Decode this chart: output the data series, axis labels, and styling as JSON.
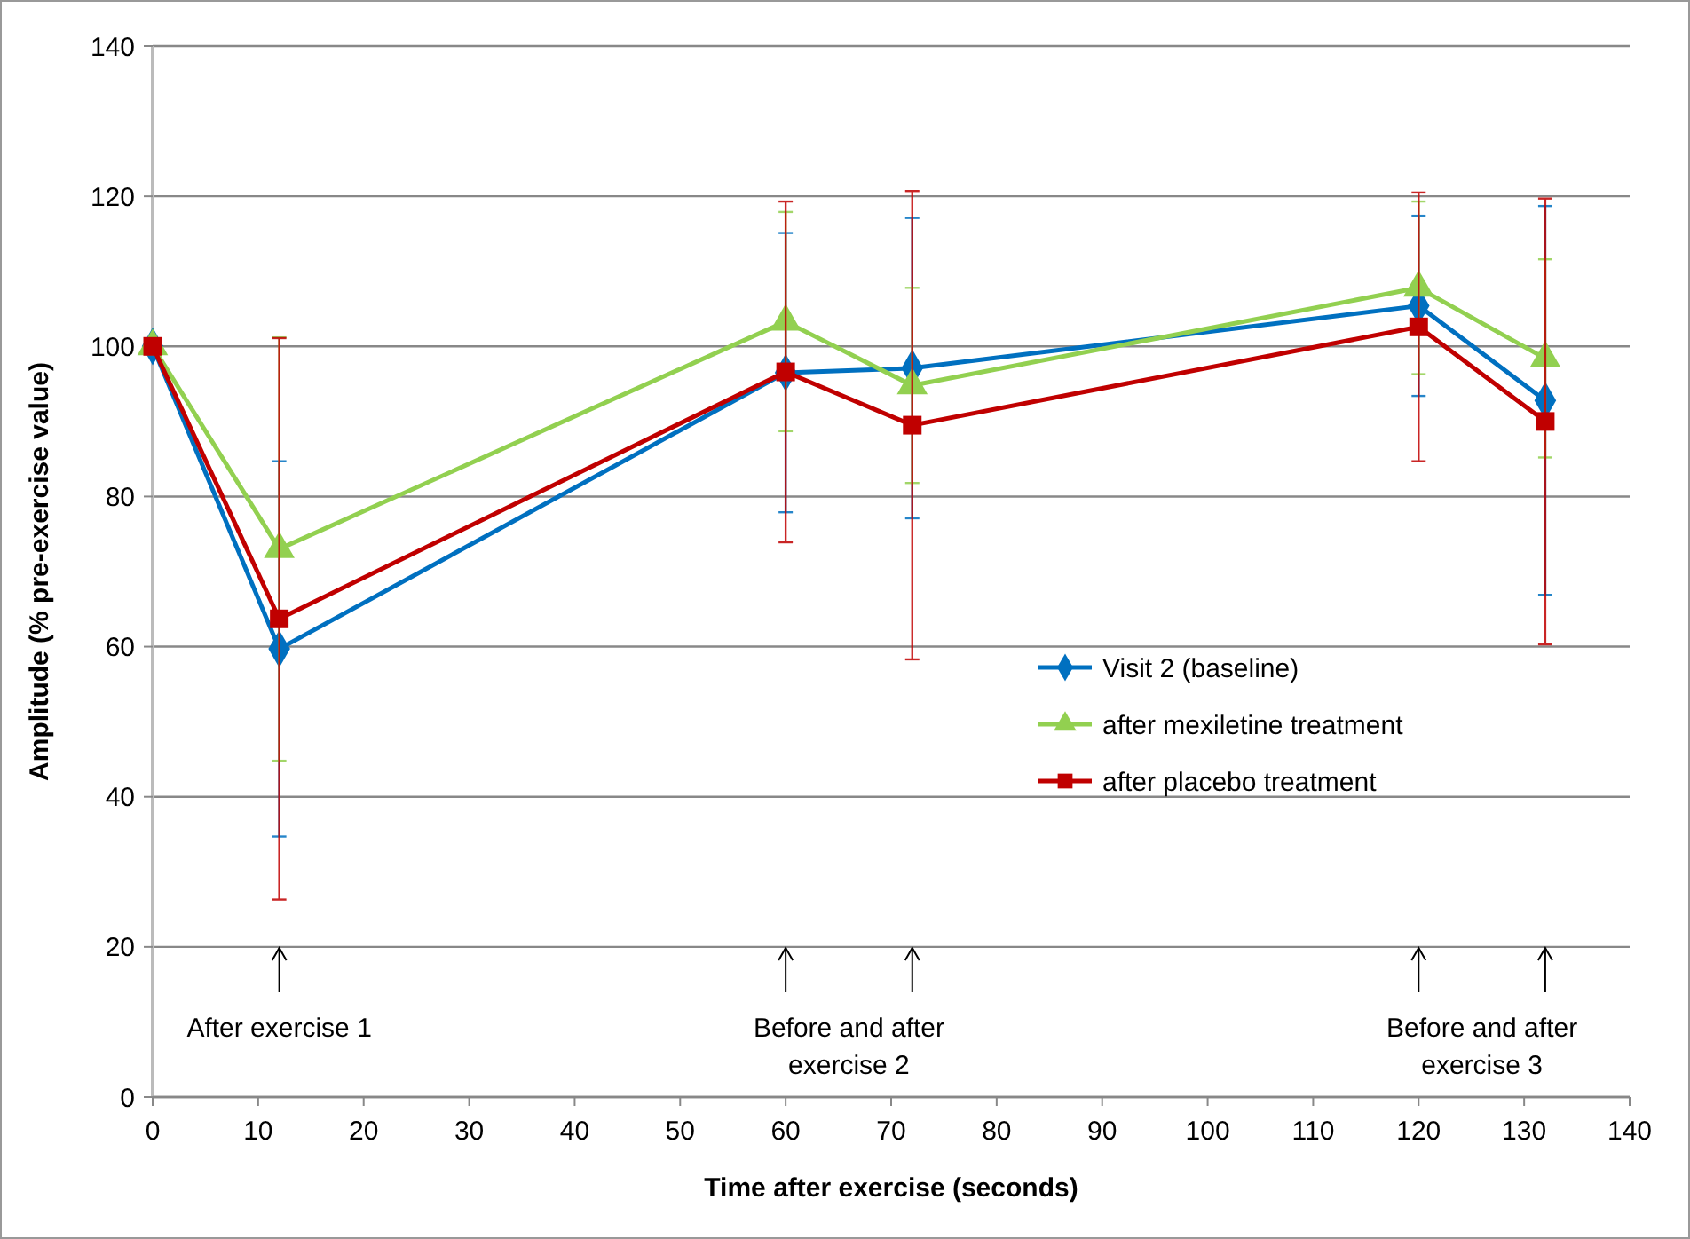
{
  "chart_data": {
    "type": "line",
    "xlabel": "Time  after exercise  (seconds)",
    "ylabel": "Amplitude (% pre-exercise value)",
    "xlim": [
      0,
      140
    ],
    "xticks": [
      0,
      10,
      20,
      30,
      40,
      50,
      60,
      70,
      80,
      90,
      100,
      110,
      120,
      130,
      140
    ],
    "ylim": [
      0,
      140
    ],
    "yticks": [
      0,
      20,
      40,
      60,
      80,
      100,
      120,
      140
    ],
    "grid": "y",
    "legend": "right",
    "x": [
      0,
      12,
      60,
      72,
      120,
      132
    ],
    "series": [
      {
        "name": "Visit 2 (baseline)",
        "color": "#0070c0",
        "marker": "diamond",
        "values": [
          100,
          59.7,
          96.5,
          97.1,
          105.4,
          92.8
        ],
        "errors": [
          null,
          25,
          18.6,
          20,
          12,
          25.9
        ]
      },
      {
        "name": "after mexiletine treatment",
        "color": "#92d050",
        "marker": "triangle",
        "values": [
          100,
          73,
          103.3,
          94.8,
          107.8,
          98.4
        ],
        "errors": [
          null,
          28.2,
          14.6,
          13,
          11.5,
          13.2
        ]
      },
      {
        "name": "after placebo treatment",
        "color": "#c00000",
        "marker": "square",
        "values": [
          100,
          63.7,
          96.6,
          89.5,
          102.6,
          90
        ],
        "errors": [
          null,
          37.4,
          22.7,
          31.2,
          17.9,
          29.7
        ]
      }
    ],
    "annotations": [
      "After exercise 1",
      "Before and after\nexercise 2",
      "Before and after\nexercise 3"
    ]
  }
}
